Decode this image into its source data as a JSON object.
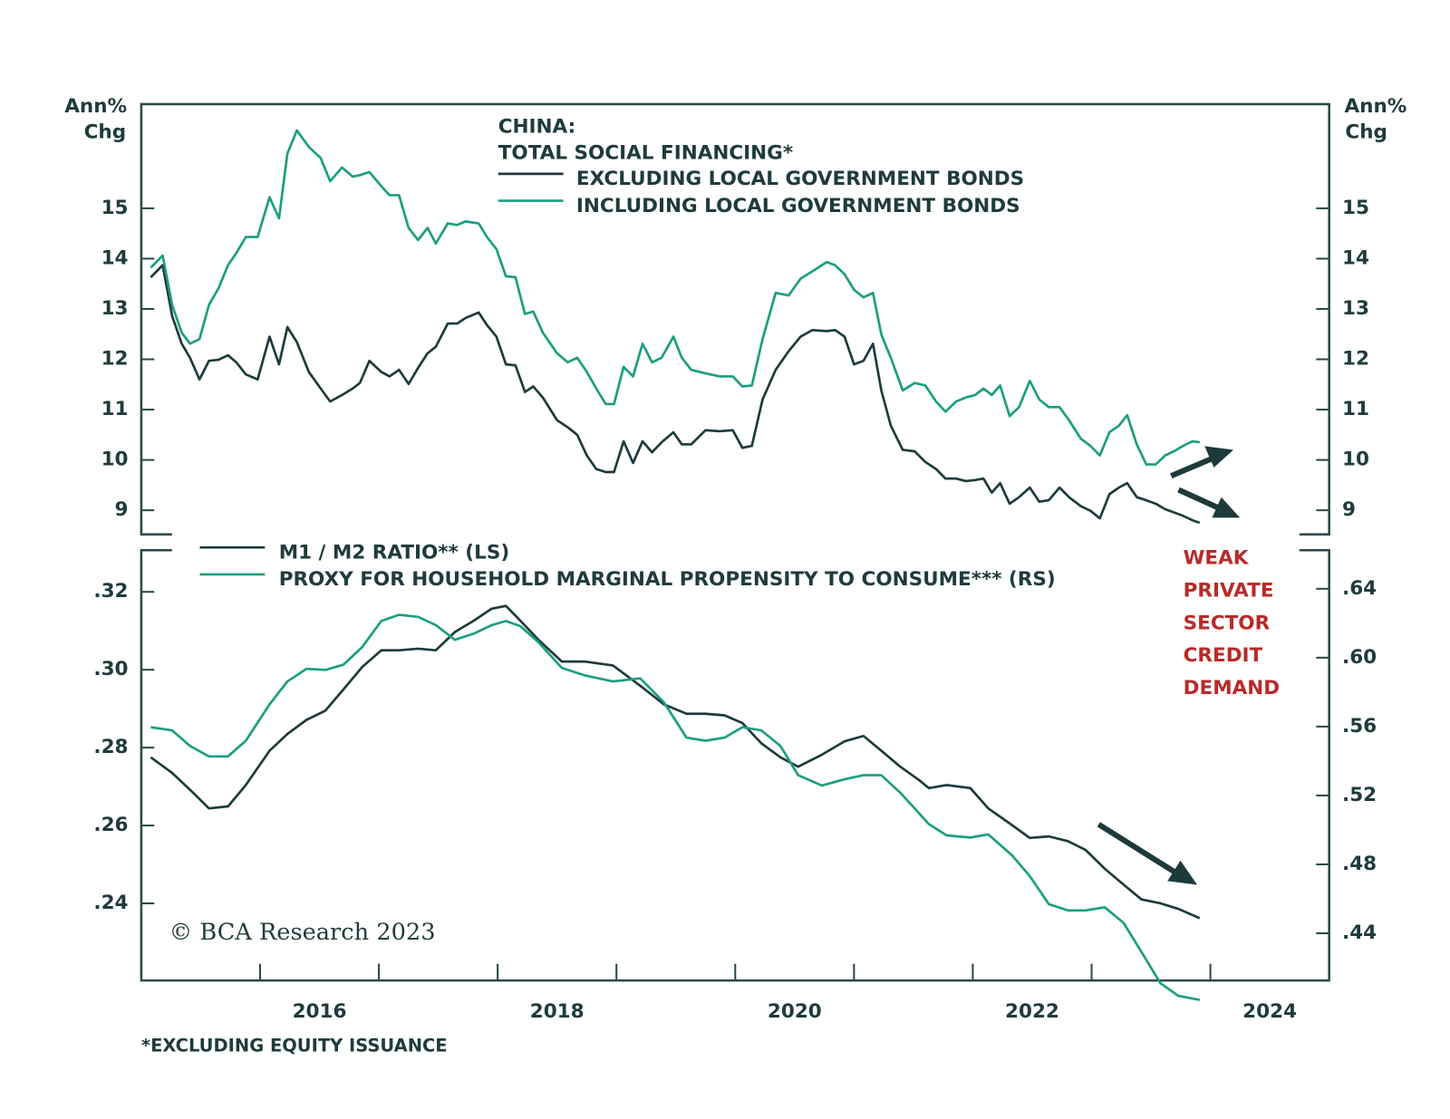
{
  "chart_data": [
    {
      "type": "line",
      "title": [
        "CHINA:",
        "TOTAL SOCIAL FINANCING*"
      ],
      "ylabel": [
        "Ann%",
        "Chg"
      ],
      "xlim": [
        2015,
        2025
      ],
      "ylim": [
        8.52,
        17.07
      ],
      "yticks": [
        9,
        10,
        11,
        12,
        13,
        14,
        15
      ],
      "x": [
        2015.08,
        2015.18,
        2015.26,
        2015.34,
        2015.41,
        2015.49,
        2015.57,
        2015.65,
        2015.73,
        2015.8,
        2015.88,
        2015.98,
        2016.08,
        2016.16,
        2016.23,
        2016.31,
        2016.41,
        2016.51,
        2016.59,
        2016.69,
        2016.78,
        2016.84,
        2016.92,
        2017.02,
        2017.09,
        2017.17,
        2017.25,
        2017.33,
        2017.41,
        2017.48,
        2017.58,
        2017.66,
        2017.73,
        2017.84,
        2017.91,
        2017.99,
        2018.07,
        2018.15,
        2018.23,
        2018.3,
        2018.38,
        2018.5,
        2018.59,
        2018.67,
        2018.75,
        2018.83,
        2018.91,
        2018.98,
        2019.06,
        2019.14,
        2019.22,
        2019.3,
        2019.38,
        2019.48,
        2019.55,
        2019.63,
        2019.75,
        2019.87,
        2019.98,
        2020.06,
        2020.14,
        2020.23,
        2020.34,
        2020.45,
        2020.55,
        2020.65,
        2020.77,
        2020.84,
        2020.92,
        2021.0,
        2021.08,
        2021.16,
        2021.23,
        2021.31,
        2021.41,
        2021.51,
        2021.6,
        2021.69,
        2021.77,
        2021.86,
        2021.94,
        2022.02,
        2022.09,
        2022.16,
        2022.23,
        2022.31,
        2022.39,
        2022.48,
        2022.56,
        2022.64,
        2022.73,
        2022.81,
        2022.91,
        2022.99,
        2023.07,
        2023.15,
        2023.23,
        2023.3,
        2023.38,
        2023.46,
        2023.54,
        2023.62,
        2023.7,
        2023.77,
        2023.85,
        2023.91
      ],
      "series": [
        {
          "name": "EXCLUDING LOCAL GOVERNMENT BONDS",
          "color": "#1d3a3a",
          "values": [
            13.63,
            13.87,
            12.86,
            12.31,
            12.03,
            11.6,
            11.97,
            11.99,
            12.08,
            11.94,
            11.7,
            11.6,
            12.45,
            11.9,
            12.64,
            12.34,
            11.75,
            11.42,
            11.16,
            11.29,
            11.42,
            11.53,
            11.97,
            11.75,
            11.66,
            11.79,
            11.51,
            11.83,
            12.12,
            12.25,
            12.71,
            12.71,
            12.82,
            12.93,
            12.68,
            12.45,
            11.9,
            11.88,
            11.35,
            11.46,
            11.24,
            10.79,
            10.65,
            10.5,
            10.09,
            9.82,
            9.76,
            9.76,
            10.37,
            9.94,
            10.37,
            10.15,
            10.35,
            10.55,
            10.31,
            10.31,
            10.59,
            10.57,
            10.59,
            10.24,
            10.28,
            11.2,
            11.79,
            12.16,
            12.45,
            12.58,
            12.56,
            12.58,
            12.45,
            11.9,
            11.97,
            12.31,
            11.38,
            10.68,
            10.2,
            10.17,
            9.96,
            9.82,
            9.63,
            9.63,
            9.58,
            9.6,
            9.63,
            9.35,
            9.54,
            9.13,
            9.26,
            9.45,
            9.17,
            9.2,
            9.45,
            9.26,
            9.08,
            8.99,
            8.84,
            9.32,
            9.45,
            9.54,
            9.26,
            9.2,
            9.13,
            9.02,
            8.95,
            8.89,
            8.8,
            8.75
          ]
        },
        {
          "name": "INCLUDING LOCAL GOVERNMENT BONDS",
          "color": "#1a9e7e",
          "values": [
            13.82,
            14.06,
            13.08,
            12.53,
            12.31,
            12.4,
            13.08,
            13.41,
            13.87,
            14.11,
            14.43,
            14.43,
            15.22,
            14.8,
            16.09,
            16.55,
            16.22,
            16.0,
            15.54,
            15.81,
            15.63,
            15.66,
            15.72,
            15.44,
            15.26,
            15.26,
            14.61,
            14.37,
            14.61,
            14.3,
            14.7,
            14.67,
            14.74,
            14.7,
            14.43,
            14.19,
            13.65,
            13.63,
            12.9,
            12.95,
            12.53,
            12.12,
            11.94,
            12.03,
            11.75,
            11.42,
            11.11,
            11.11,
            11.85,
            11.66,
            12.31,
            11.94,
            12.03,
            12.45,
            12.03,
            11.79,
            11.72,
            11.66,
            11.66,
            11.46,
            11.48,
            12.4,
            13.32,
            13.27,
            13.6,
            13.75,
            13.93,
            13.87,
            13.69,
            13.38,
            13.23,
            13.32,
            12.49,
            12.03,
            11.38,
            11.53,
            11.48,
            11.16,
            10.96,
            11.16,
            11.24,
            11.29,
            11.42,
            11.29,
            11.48,
            10.87,
            11.05,
            11.57,
            11.2,
            11.05,
            11.05,
            10.79,
            10.42,
            10.28,
            10.09,
            10.55,
            10.68,
            10.89,
            10.31,
            9.91,
            9.91,
            10.09,
            10.18,
            10.28,
            10.37,
            10.35
          ]
        }
      ]
    },
    {
      "type": "line",
      "xlim": [
        2015,
        2025
      ],
      "xticks": [
        2016,
        2017,
        2018,
        2019,
        2020,
        2021,
        2022,
        2023,
        2024
      ],
      "xlabeled": [
        2016,
        2018,
        2020,
        2022,
        2024
      ],
      "ylim": [
        0.2202,
        0.3307
      ],
      "yticks": [
        {
          "value": 0.24,
          "label": ".24"
        },
        {
          "value": 0.26,
          "label": ".26"
        },
        {
          "value": 0.28,
          "label": ".28"
        },
        {
          "value": 0.3,
          "label": ".30"
        },
        {
          "value": 0.32,
          "label": ".32"
        }
      ],
      "y2lim": [
        0.4126,
        0.6624
      ],
      "y2ticks": [
        {
          "value": 0.44,
          "label": ".44"
        },
        {
          "value": 0.48,
          "label": ".48"
        },
        {
          "value": 0.52,
          "label": ".52"
        },
        {
          "value": 0.56,
          "label": ".56"
        },
        {
          "value": 0.6,
          "label": ".60"
        },
        {
          "value": 0.64,
          "label": ".64"
        }
      ],
      "x": [
        2015.08,
        2015.26,
        2015.41,
        2015.57,
        2015.73,
        2015.88,
        2016.08,
        2016.23,
        2016.39,
        2016.55,
        2016.7,
        2016.86,
        2017.02,
        2017.17,
        2017.33,
        2017.48,
        2017.64,
        2017.8,
        2017.95,
        2018.07,
        2018.19,
        2018.34,
        2018.54,
        2018.73,
        2018.97,
        2019.2,
        2019.4,
        2019.59,
        2019.75,
        2019.91,
        2020.06,
        2020.22,
        2020.38,
        2020.53,
        2020.73,
        2020.92,
        2021.08,
        2021.23,
        2021.39,
        2021.55,
        2021.63,
        2021.78,
        2021.98,
        2022.13,
        2022.33,
        2022.48,
        2022.64,
        2022.8,
        2022.95,
        2023.11,
        2023.27,
        2023.42,
        2023.58,
        2023.73,
        2023.91
      ],
      "series": [
        {
          "name": "M1 / M2 RATIO** (LS)",
          "color": "#1d3a3a",
          "values": [
            0.2775,
            0.2735,
            0.2692,
            0.2644,
            0.2649,
            0.2704,
            0.2792,
            0.2835,
            0.2871,
            0.2895,
            0.2949,
            0.3007,
            0.305,
            0.305,
            0.3054,
            0.305,
            0.3097,
            0.3126,
            0.3157,
            0.3164,
            0.3126,
            0.3078,
            0.3021,
            0.3021,
            0.3011,
            0.2959,
            0.2911,
            0.2887,
            0.2887,
            0.2883,
            0.2863,
            0.2811,
            0.2775,
            0.2751,
            0.2782,
            0.2816,
            0.283,
            0.2792,
            0.2751,
            0.2716,
            0.2696,
            0.2704,
            0.2696,
            0.2644,
            0.2601,
            0.2568,
            0.2572,
            0.256,
            0.2537,
            0.2489,
            0.2448,
            0.241,
            0.24,
            0.2386,
            0.2362
          ]
        },
        {
          "name": "PROXY FOR HOUSEHOLD MARGINAL PROPENSITY TO CONSUME*** (RS)",
          "color": "#1a9e7e",
          "axis": "y2",
          "values": [
            0.5596,
            0.5578,
            0.5488,
            0.5427,
            0.5427,
            0.5518,
            0.5729,
            0.5862,
            0.5935,
            0.5929,
            0.5959,
            0.6062,
            0.6213,
            0.6249,
            0.6237,
            0.6189,
            0.6104,
            0.614,
            0.6189,
            0.6213,
            0.6183,
            0.6092,
            0.5941,
            0.5898,
            0.5862,
            0.588,
            0.5741,
            0.5536,
            0.5518,
            0.5536,
            0.5596,
            0.5578,
            0.5488,
            0.5318,
            0.5258,
            0.5294,
            0.5318,
            0.5318,
            0.5216,
            0.5095,
            0.5034,
            0.4968,
            0.4956,
            0.4974,
            0.4853,
            0.4732,
            0.4569,
            0.4533,
            0.4533,
            0.4551,
            0.446,
            0.4291,
            0.411,
            0.4037,
            0.4013
          ]
        }
      ]
    }
  ],
  "annotation": [
    "WEAK",
    "PRIVATE",
    "SECTOR",
    "CREDIT",
    "DEMAND"
  ],
  "copyright": "© BCA Research 2023",
  "footnote": "*EXCLUDING EQUITY ISSUANCE"
}
